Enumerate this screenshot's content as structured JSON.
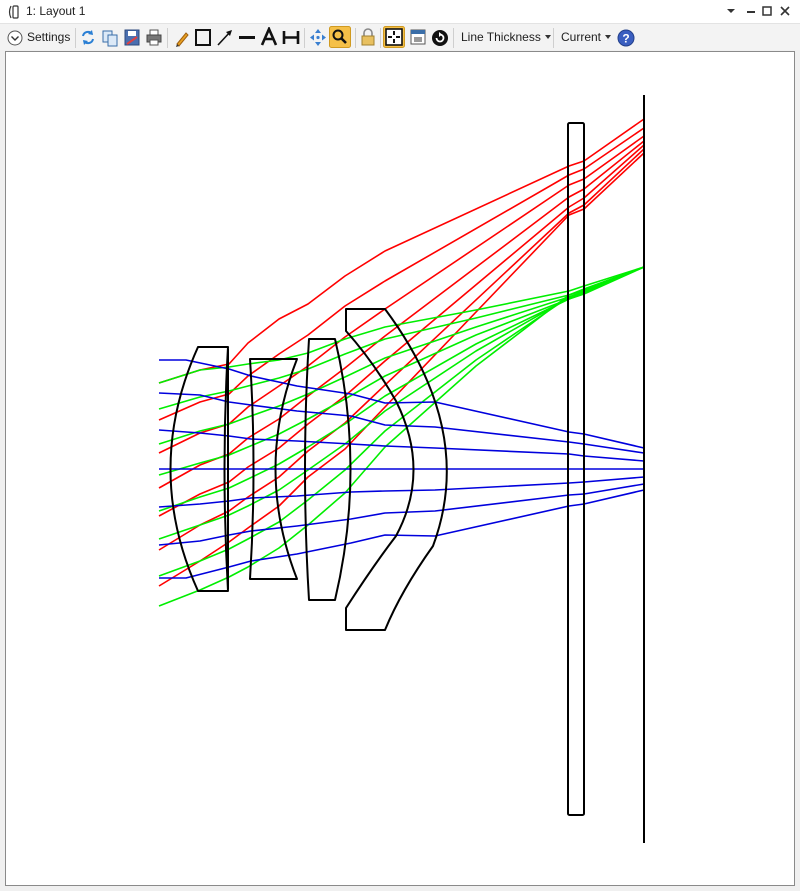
{
  "window": {
    "title": "1: Layout 1"
  },
  "toolbar": {
    "settings_label": "Settings",
    "line_thickness_label": "Line Thickness",
    "current_label": "Current"
  },
  "icons": [
    "settings-chevron-icon",
    "refresh-icon",
    "copy-icon",
    "save-icon",
    "print-icon",
    "pencil-icon",
    "rectangle-icon",
    "arrow-icon",
    "line-icon",
    "text-icon",
    "dimension-icon",
    "pan-icon",
    "zoom-icon",
    "lock-icon",
    "fit-icon",
    "window-icon",
    "rotate-icon",
    "help-icon"
  ],
  "colors": {
    "red": "#ff0000",
    "green": "#00ee00",
    "blue": "#0000dd",
    "lens": "#000000",
    "accent": "#f5c048"
  }
}
